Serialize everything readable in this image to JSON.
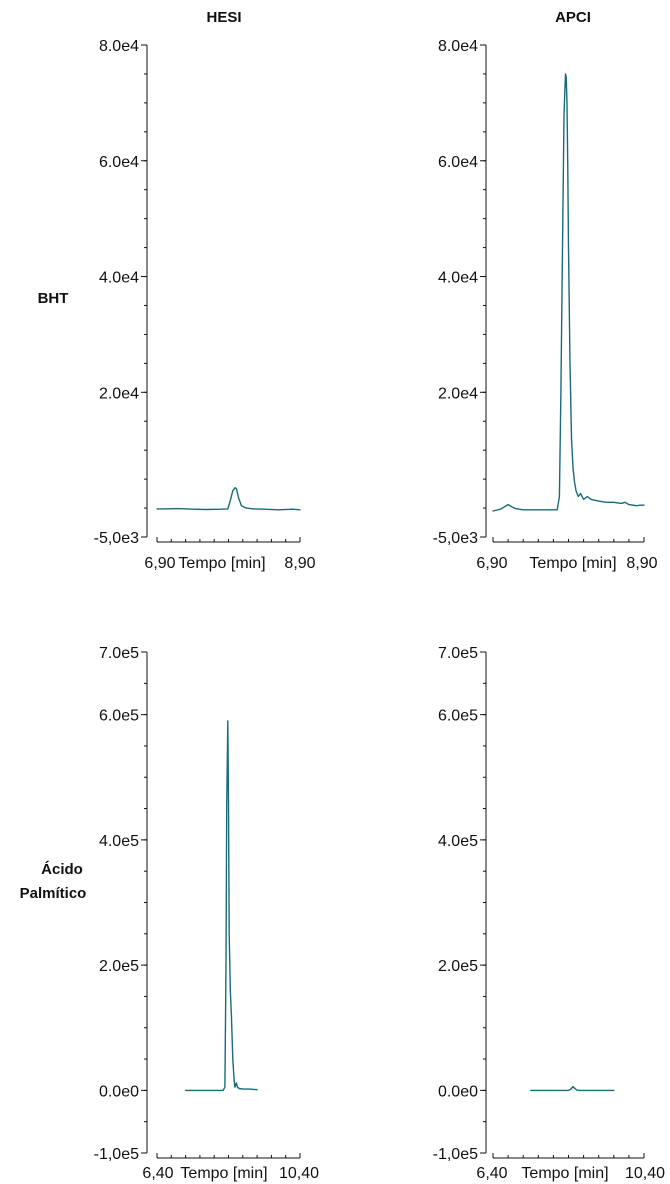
{
  "column_titles": [
    "HESI",
    "APCI"
  ],
  "row_labels": [
    [
      "BHT"
    ],
    [
      "Ácido",
      "Palmítico"
    ]
  ],
  "colors": {
    "trace": "#1a6b78",
    "axis": "#111111",
    "text": "#111111"
  },
  "chart_data": [
    {
      "type": "line",
      "title": "HESI",
      "row": "BHT",
      "xlabel": "Tempo [min]",
      "xtick_labels": [
        "6,90",
        "8,90"
      ],
      "xlim": [
        6.9,
        8.9
      ],
      "ylim": [
        -5000,
        80000
      ],
      "ytick_labels": [
        "-5,0e3",
        "2.0e4",
        "4.0e4",
        "6.0e4",
        "8.0e4"
      ],
      "series": [
        {
          "x": [
            6.9,
            7.0,
            7.2,
            7.4,
            7.6,
            7.8,
            7.89,
            7.93,
            7.96,
            7.99,
            8.01,
            8.04,
            8.08,
            8.15,
            8.25,
            8.4,
            8.6,
            8.8,
            8.9
          ],
          "y": [
            -150,
            -150,
            -100,
            -200,
            -250,
            -200,
            -150,
            1500,
            3000,
            3500,
            3400,
            1800,
            400,
            0,
            -150,
            -200,
            -300,
            -200,
            -300
          ]
        }
      ]
    },
    {
      "type": "line",
      "title": "APCI",
      "row": "BHT",
      "xlabel": "Tempo [min]",
      "xtick_labels": [
        "6,90",
        "8,90"
      ],
      "xlim": [
        6.9,
        8.9
      ],
      "ylim": [
        -5000,
        80000
      ],
      "ytick_labels": [
        "-5,0e3",
        "2.0e4",
        "4.0e4",
        "6.0e4",
        "8.0e4"
      ],
      "series": [
        {
          "x": [
            6.9,
            7.0,
            7.1,
            7.15,
            7.2,
            7.3,
            7.5,
            7.6,
            7.75,
            7.78,
            7.8,
            7.82,
            7.84,
            7.86,
            7.87,
            7.88,
            7.89,
            7.9,
            7.92,
            7.94,
            7.96,
            7.98,
            8.0,
            8.03,
            8.06,
            8.1,
            8.15,
            8.2,
            8.3,
            8.4,
            8.5,
            8.6,
            8.65,
            8.7,
            8.8,
            8.85,
            8.9
          ],
          "y": [
            -500,
            -200,
            600,
            200,
            -100,
            -300,
            -300,
            -300,
            -300,
            2000,
            20000,
            45000,
            68000,
            75000,
            74500,
            70000,
            60000,
            45000,
            25000,
            12000,
            7000,
            4500,
            3000,
            2000,
            2500,
            1500,
            2000,
            1500,
            1200,
            1000,
            1000,
            800,
            1000,
            600,
            400,
            500,
            500
          ]
        }
      ]
    },
    {
      "type": "line",
      "title": "",
      "row": "Ácido Palmítico",
      "xlabel": "Tempo [min]",
      "xtick_labels": [
        "6,40",
        "10,40"
      ],
      "xlim": [
        6.4,
        10.4
      ],
      "ylim": [
        -100000,
        700000
      ],
      "ytick_labels": [
        "-1,0e5",
        "0.0e0",
        "2.0e5",
        "4.0e5",
        "6.0e5",
        "7.0e5"
      ],
      "series": [
        {
          "x": [
            7.2,
            7.6,
            8.0,
            8.25,
            8.3,
            8.33,
            8.35,
            8.38,
            8.4,
            8.42,
            8.45,
            8.48,
            8.52,
            8.56,
            8.58,
            8.62,
            8.65,
            8.7,
            8.8,
            9.0,
            9.2
          ],
          "y": [
            0,
            0,
            0,
            0,
            5000,
            200000,
            450000,
            590000,
            460000,
            250000,
            160000,
            120000,
            50000,
            15000,
            5000,
            12000,
            5000,
            3000,
            2000,
            2000,
            1000
          ]
        }
      ]
    },
    {
      "type": "line",
      "title": "",
      "row": "Ácido Palmítico",
      "xlabel": "Tempo [min]",
      "xtick_labels": [
        "6,40",
        "10,40"
      ],
      "xlim": [
        6.4,
        10.4
      ],
      "ylim": [
        -100000,
        700000
      ],
      "ytick_labels": [
        "-1,0e5",
        "0.0e0",
        "2.0e5",
        "4.0e5",
        "6.0e5",
        "7.0e5"
      ],
      "series": [
        {
          "x": [
            7.4,
            7.8,
            8.2,
            8.4,
            8.47,
            8.52,
            8.57,
            8.62,
            8.7,
            8.9,
            9.2,
            9.6
          ],
          "y": [
            0,
            0,
            0,
            0,
            2000,
            6000,
            3000,
            500,
            0,
            0,
            0,
            0
          ]
        }
      ]
    }
  ]
}
